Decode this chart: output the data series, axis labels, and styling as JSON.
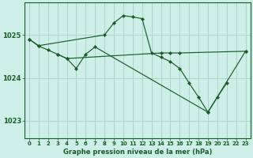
{
  "background_color": "#ceeee8",
  "grid_color": "#aed4cc",
  "line_color": "#1a5c28",
  "title": "Graphe pression niveau de la mer (hPa)",
  "yticks": [
    1023,
    1024,
    1025
  ],
  "xlim": [
    -0.5,
    23.5
  ],
  "ylim": [
    1022.6,
    1025.75
  ],
  "series": [
    {
      "x": [
        0,
        1,
        2,
        3,
        4,
        5,
        6,
        7,
        8,
        9,
        10,
        11,
        12,
        13,
        14,
        15,
        16,
        17,
        18,
        19,
        20,
        21,
        22,
        23
      ],
      "y": [
        1024.9,
        1024.75,
        null,
        null,
        null,
        null,
        null,
        null,
        1025.0,
        1025.28,
        1025.45,
        1025.42,
        1025.38,
        1024.58,
        1024.48,
        1024.38,
        1024.22,
        1023.88,
        1023.55,
        1023.2,
        null,
        null,
        null,
        1024.62
      ]
    },
    {
      "x": [
        0,
        1,
        2,
        3,
        4,
        5,
        6,
        7,
        8,
        9,
        10,
        11,
        12,
        13,
        14,
        15,
        16,
        17,
        18,
        19,
        20,
        21,
        22,
        23
      ],
      "y": [
        1024.9,
        1024.74,
        1024.65,
        1024.55,
        1024.45,
        null,
        null,
        null,
        null,
        null,
        null,
        null,
        null,
        null,
        1024.58,
        1024.58,
        1024.58,
        null,
        null,
        null,
        null,
        null,
        null,
        1024.62
      ]
    },
    {
      "x": [
        3,
        4,
        5,
        6,
        7,
        8,
        9,
        10,
        11,
        12,
        13,
        14,
        15,
        16,
        17,
        18,
        19,
        20,
        21
      ],
      "y": [
        1024.55,
        1024.45,
        1024.22,
        1024.55,
        1024.72,
        null,
        null,
        null,
        null,
        null,
        null,
        null,
        null,
        null,
        null,
        null,
        1023.2,
        1023.55,
        1023.88
      ]
    }
  ]
}
